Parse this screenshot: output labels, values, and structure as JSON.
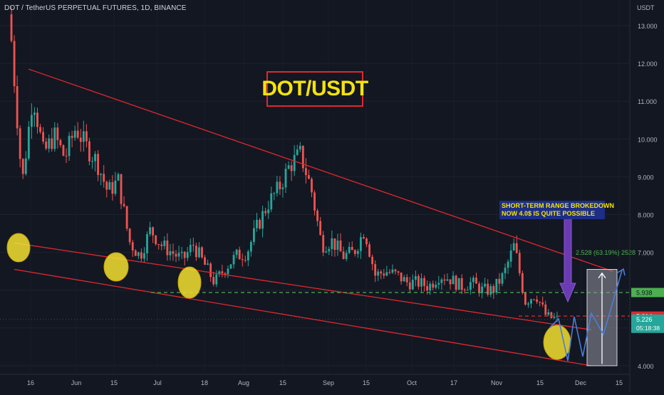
{
  "chart_data": {
    "type": "candlestick",
    "header": "DOT / TetherUS PERPETUAL FUTURES, 1D, BINANCE",
    "title": "DOT/USDT",
    "currency_label": "USDT",
    "y_ticks": [
      "13.000",
      "12.000",
      "11.000",
      "10.000",
      "9.000",
      "8.000",
      "7.000",
      "6.000",
      "5.000",
      "4.000"
    ],
    "ylim": [
      3.8,
      13.5
    ],
    "x_ticks": [
      "16",
      "Jun",
      "15",
      "Jul",
      "18",
      "Aug",
      "15",
      "Sep",
      "15",
      "Oct",
      "17",
      "Nov",
      "15",
      "Dec",
      "15"
    ],
    "annotation_lines": [
      "SHORT-TERM RANGE BROKEDOWN",
      "NOW 4.0$ IS QUITE POSSIBLE"
    ],
    "measure_label": "2.528 (63.19%) 2528",
    "price_labels": [
      {
        "value": "5.938",
        "color": "#4caf50",
        "text_color": "#131722"
      },
      {
        "value": "5.314",
        "color": "#e0282e",
        "text_color": "#ffffff"
      },
      {
        "value": "5.226",
        "color": "#26a69a",
        "text_color": "#ffffff"
      }
    ],
    "countdown": "05:18:38",
    "levels": {
      "support_green": 5.938,
      "breakdown_red": 5.314,
      "last_price": 5.226
    },
    "colors": {
      "up": "#26a69a",
      "down": "#ef5350",
      "channel": "#e0282e",
      "projection": "#4a7ddb"
    },
    "series": [
      {
        "name": "close",
        "values": [
          12.6,
          8.8,
          11.2,
          9.6,
          10.1,
          9.5,
          10.3,
          9.8,
          9.4,
          8.6,
          8.9,
          7.3,
          6.9,
          7.6,
          7.2,
          7.0,
          6.8,
          7.2,
          6.7,
          6.2,
          6.6,
          6.9,
          7.0,
          7.7,
          8.3,
          8.7,
          9.3,
          9.6,
          8.7,
          7.2,
          7.3,
          6.9,
          7.0,
          7.6,
          6.4,
          6.5,
          6.4,
          6.2,
          6.2,
          6.1,
          6.4,
          6.3,
          6.1,
          6.2,
          6.0,
          6.0,
          6.4,
          7.2,
          5.7,
          5.9,
          5.3,
          5.23
        ]
      }
    ]
  }
}
